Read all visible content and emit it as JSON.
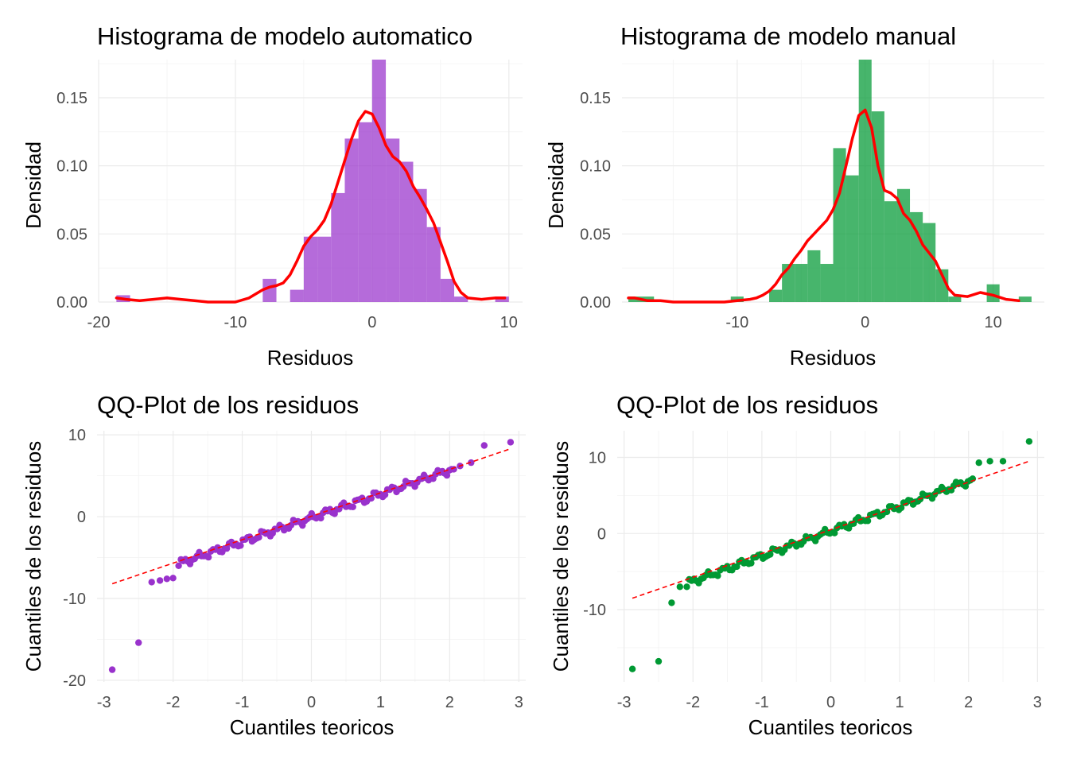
{
  "chart_data": [
    {
      "type": "histogram",
      "title": "Histograma de modelo automatico",
      "xlabel": "Residuos",
      "ylabel": "Densidad",
      "xlim": [
        -20,
        11
      ],
      "ylim": [
        0,
        0.178
      ],
      "xticks": [
        -20,
        -10,
        0,
        10
      ],
      "xtick_labels": [
        "-20",
        "-10",
        "0",
        "10"
      ],
      "yticks": [
        0,
        0.05,
        0.1,
        0.15
      ],
      "ytick_labels": [
        "0.00",
        "0.05",
        "0.10",
        "0.15"
      ],
      "bin_width": 1,
      "bars": [
        {
          "x0": -18.7,
          "x1": -17.7,
          "y": 0.005
        },
        {
          "x0": -8.0,
          "x1": -7.0,
          "y": 0.017
        },
        {
          "x0": -6.0,
          "x1": -5.0,
          "y": 0.009
        },
        {
          "x0": -5.0,
          "x1": -4.0,
          "y": 0.048
        },
        {
          "x0": -4.0,
          "x1": -3.0,
          "y": 0.048
        },
        {
          "x0": -3.0,
          "x1": -2.0,
          "y": 0.08
        },
        {
          "x0": -2.0,
          "x1": -1.0,
          "y": 0.12
        },
        {
          "x0": -1.0,
          "x1": 0.0,
          "y": 0.132
        },
        {
          "x0": 0.0,
          "x1": 1.0,
          "y": 0.178
        },
        {
          "x0": 1.0,
          "x1": 2.0,
          "y": 0.12
        },
        {
          "x0": 2.0,
          "x1": 3.0,
          "y": 0.103
        },
        {
          "x0": 3.0,
          "x1": 4.0,
          "y": 0.083
        },
        {
          "x0": 4.0,
          "x1": 5.0,
          "y": 0.055
        },
        {
          "x0": 5.0,
          "x1": 6.0,
          "y": 0.017
        },
        {
          "x0": 6.0,
          "x1": 7.0,
          "y": 0.004
        },
        {
          "x0": 9.0,
          "x1": 10.0,
          "y": 0.004
        }
      ],
      "bar_color": "#9932cc",
      "density": {
        "x": [
          -18.7,
          -18,
          -17,
          -16,
          -15,
          -14,
          -13,
          -12,
          -11,
          -10,
          -9,
          -8.5,
          -8,
          -7.5,
          -7,
          -6.5,
          -6,
          -5.5,
          -5,
          -4.5,
          -4,
          -3.5,
          -3,
          -2.5,
          -2,
          -1.5,
          -1,
          -0.5,
          0,
          0.5,
          1,
          1.5,
          2,
          2.5,
          3,
          3.5,
          4,
          4.5,
          5,
          5.5,
          6,
          6.5,
          7,
          8,
          9,
          9.7
        ],
        "y": [
          0.003,
          0.002,
          0.001,
          0.002,
          0.003,
          0.002,
          0.001,
          0.0,
          0.0,
          0.0,
          0.003,
          0.006,
          0.009,
          0.011,
          0.012,
          0.014,
          0.02,
          0.03,
          0.041,
          0.048,
          0.053,
          0.06,
          0.072,
          0.088,
          0.104,
          0.12,
          0.133,
          0.14,
          0.138,
          0.128,
          0.115,
          0.107,
          0.103,
          0.096,
          0.085,
          0.077,
          0.068,
          0.058,
          0.044,
          0.03,
          0.015,
          0.007,
          0.003,
          0.002,
          0.003,
          0.003
        ],
        "color": "#ff0000"
      }
    },
    {
      "type": "histogram",
      "title": "Histograma de modelo manual",
      "xlabel": "Residuos",
      "ylabel": "Densidad",
      "xlim": [
        -19,
        14
      ],
      "ylim": [
        0,
        0.178
      ],
      "xticks": [
        -10,
        0,
        10
      ],
      "xtick_labels": [
        "-10",
        "0",
        "10"
      ],
      "yticks": [
        0,
        0.05,
        0.1,
        0.15
      ],
      "ytick_labels": [
        "0.00",
        "0.05",
        "0.10",
        "0.15"
      ],
      "bin_width": 1,
      "bars": [
        {
          "x0": -18.5,
          "x1": -16.5,
          "y": 0.004
        },
        {
          "x0": -10.5,
          "x1": -9.5,
          "y": 0.004
        },
        {
          "x0": -7.5,
          "x1": -6.5,
          "y": 0.009
        },
        {
          "x0": -6.5,
          "x1": -5.5,
          "y": 0.028
        },
        {
          "x0": -5.5,
          "x1": -4.5,
          "y": 0.028
        },
        {
          "x0": -4.5,
          "x1": -3.5,
          "y": 0.038
        },
        {
          "x0": -3.5,
          "x1": -2.5,
          "y": 0.028
        },
        {
          "x0": -2.5,
          "x1": -1.5,
          "y": 0.113
        },
        {
          "x0": -1.5,
          "x1": -0.5,
          "y": 0.093
        },
        {
          "x0": -0.5,
          "x1": 0.5,
          "y": 0.178
        },
        {
          "x0": 0.5,
          "x1": 1.5,
          "y": 0.14
        },
        {
          "x0": 1.5,
          "x1": 2.5,
          "y": 0.074
        },
        {
          "x0": 2.5,
          "x1": 3.5,
          "y": 0.083
        },
        {
          "x0": 3.5,
          "x1": 4.5,
          "y": 0.066
        },
        {
          "x0": 4.5,
          "x1": 5.5,
          "y": 0.058
        },
        {
          "x0": 5.5,
          "x1": 6.5,
          "y": 0.024
        },
        {
          "x0": 6.5,
          "x1": 7.5,
          "y": 0.004
        },
        {
          "x0": 9.5,
          "x1": 10.5,
          "y": 0.013
        },
        {
          "x0": 12.0,
          "x1": 13.0,
          "y": 0.004
        }
      ],
      "bar_color": "#009933",
      "density": {
        "x": [
          -18.5,
          -18,
          -17,
          -16,
          -15,
          -14,
          -13,
          -12,
          -11,
          -10,
          -9,
          -8.5,
          -8,
          -7.5,
          -7,
          -6.5,
          -6,
          -5.5,
          -5,
          -4.5,
          -4,
          -3.5,
          -3,
          -2.5,
          -2,
          -1.5,
          -1,
          -0.5,
          0,
          0.5,
          1,
          1.5,
          2,
          2.5,
          3,
          3.5,
          4,
          4.5,
          5,
          5.5,
          6,
          6.5,
          7,
          8,
          9,
          10,
          11,
          12
        ],
        "y": [
          0.003,
          0.003,
          0.001,
          0.001,
          0.0,
          0.0,
          0.0,
          0.0,
          0.0,
          0.001,
          0.002,
          0.003,
          0.005,
          0.008,
          0.013,
          0.02,
          0.025,
          0.032,
          0.038,
          0.045,
          0.05,
          0.055,
          0.06,
          0.068,
          0.08,
          0.1,
          0.12,
          0.137,
          0.141,
          0.128,
          0.1,
          0.082,
          0.08,
          0.076,
          0.065,
          0.06,
          0.052,
          0.042,
          0.036,
          0.03,
          0.02,
          0.01,
          0.005,
          0.004,
          0.007,
          0.005,
          0.002,
          0.001
        ],
        "color": "#ff0000"
      }
    },
    {
      "type": "scatter",
      "title": "QQ-Plot de los residuos",
      "xlabel": "Cuantiles teoricos",
      "ylabel": "Cuantiles de los residuos",
      "xlim": [
        -3.1,
        3.1
      ],
      "ylim": [
        -20.2,
        10.5
      ],
      "xticks": [
        -3,
        -2,
        -1,
        0,
        1,
        2,
        3
      ],
      "xtick_labels": [
        "-3",
        "-2",
        "-1",
        "0",
        "1",
        "2",
        "3"
      ],
      "yticks": [
        -20,
        -10,
        0,
        10
      ],
      "ytick_labels": [
        "-20",
        "-10",
        "0",
        "10"
      ],
      "point_color": "#9932cc",
      "reference_line": {
        "x": [
          -2.88,
          2.88
        ],
        "y": [
          -8.2,
          8.3
        ],
        "color": "#ff0000",
        "dashed": true
      },
      "outliers": {
        "x": [
          -2.88,
          -2.5,
          -2.31,
          -2.19,
          -2.09,
          -2.0,
          -1.92,
          2.06,
          2.15,
          2.31,
          2.5,
          2.88
        ],
        "y": [
          -18.7,
          -15.4,
          -8.0,
          -7.8,
          -7.6,
          -7.5,
          -6.0,
          5.8,
          6.2,
          6.6,
          8.7,
          9.1
        ]
      }
    },
    {
      "type": "scatter",
      "title": "QQ-Plot de los residuos",
      "xlabel": "Cuantiles teoricos",
      "ylabel": "Cuantiles de los residuos",
      "xlim": [
        -3.1,
        3.1
      ],
      "ylim": [
        -19.5,
        13.5
      ],
      "xticks": [
        -3,
        -2,
        -1,
        0,
        1,
        2,
        3
      ],
      "xtick_labels": [
        "-3",
        "-2",
        "-1",
        "0",
        "1",
        "2",
        "3"
      ],
      "yticks": [
        -10,
        0,
        10
      ],
      "ytick_labels": [
        "-10",
        "0",
        "10"
      ],
      "point_color": "#009933",
      "reference_line": {
        "x": [
          -2.88,
          2.88
        ],
        "y": [
          -8.5,
          9.5
        ],
        "color": "#ff0000",
        "dashed": true
      },
      "outliers": {
        "x": [
          -2.88,
          -2.5,
          -2.31,
          -2.19,
          -2.09,
          2.06,
          2.15,
          2.31,
          2.5,
          2.88
        ],
        "y": [
          -17.8,
          -16.8,
          -9.1,
          -7.0,
          -7.0,
          7.2,
          9.3,
          9.5,
          9.5,
          12.1
        ]
      }
    }
  ]
}
